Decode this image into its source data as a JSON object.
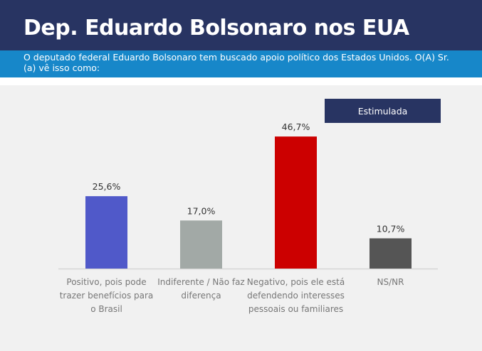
{
  "header": {
    "title": "Dep. Eduardo Bolsonaro nos EUA",
    "subtitle": "O deputado federal Eduardo Bolsonaro tem buscado apoio político dos Estados Unidos. O(A) Sr.(a) vê isso como:"
  },
  "chart_data": {
    "type": "bar",
    "title": "Dep. Eduardo Bolsonaro nos EUA",
    "legend": [
      "Estimulada"
    ],
    "legend_position": "top-right",
    "categories": [
      "Positivo, pois pode trazer benefícios para o Brasil",
      "Indiferente / Não faz diferença",
      "Negativo, pois ele está defendendo interesses pessoais ou familiares",
      "NS/NR"
    ],
    "values": [
      25.6,
      17.0,
      46.7,
      10.7
    ],
    "labels": [
      "25,6%",
      "17,0%",
      "46,7%",
      "10,7%"
    ],
    "colors": [
      "#5059c9",
      "#a2a9a6",
      "#cc0000",
      "#555555"
    ],
    "ylim": [
      0,
      50
    ],
    "grid": false
  }
}
